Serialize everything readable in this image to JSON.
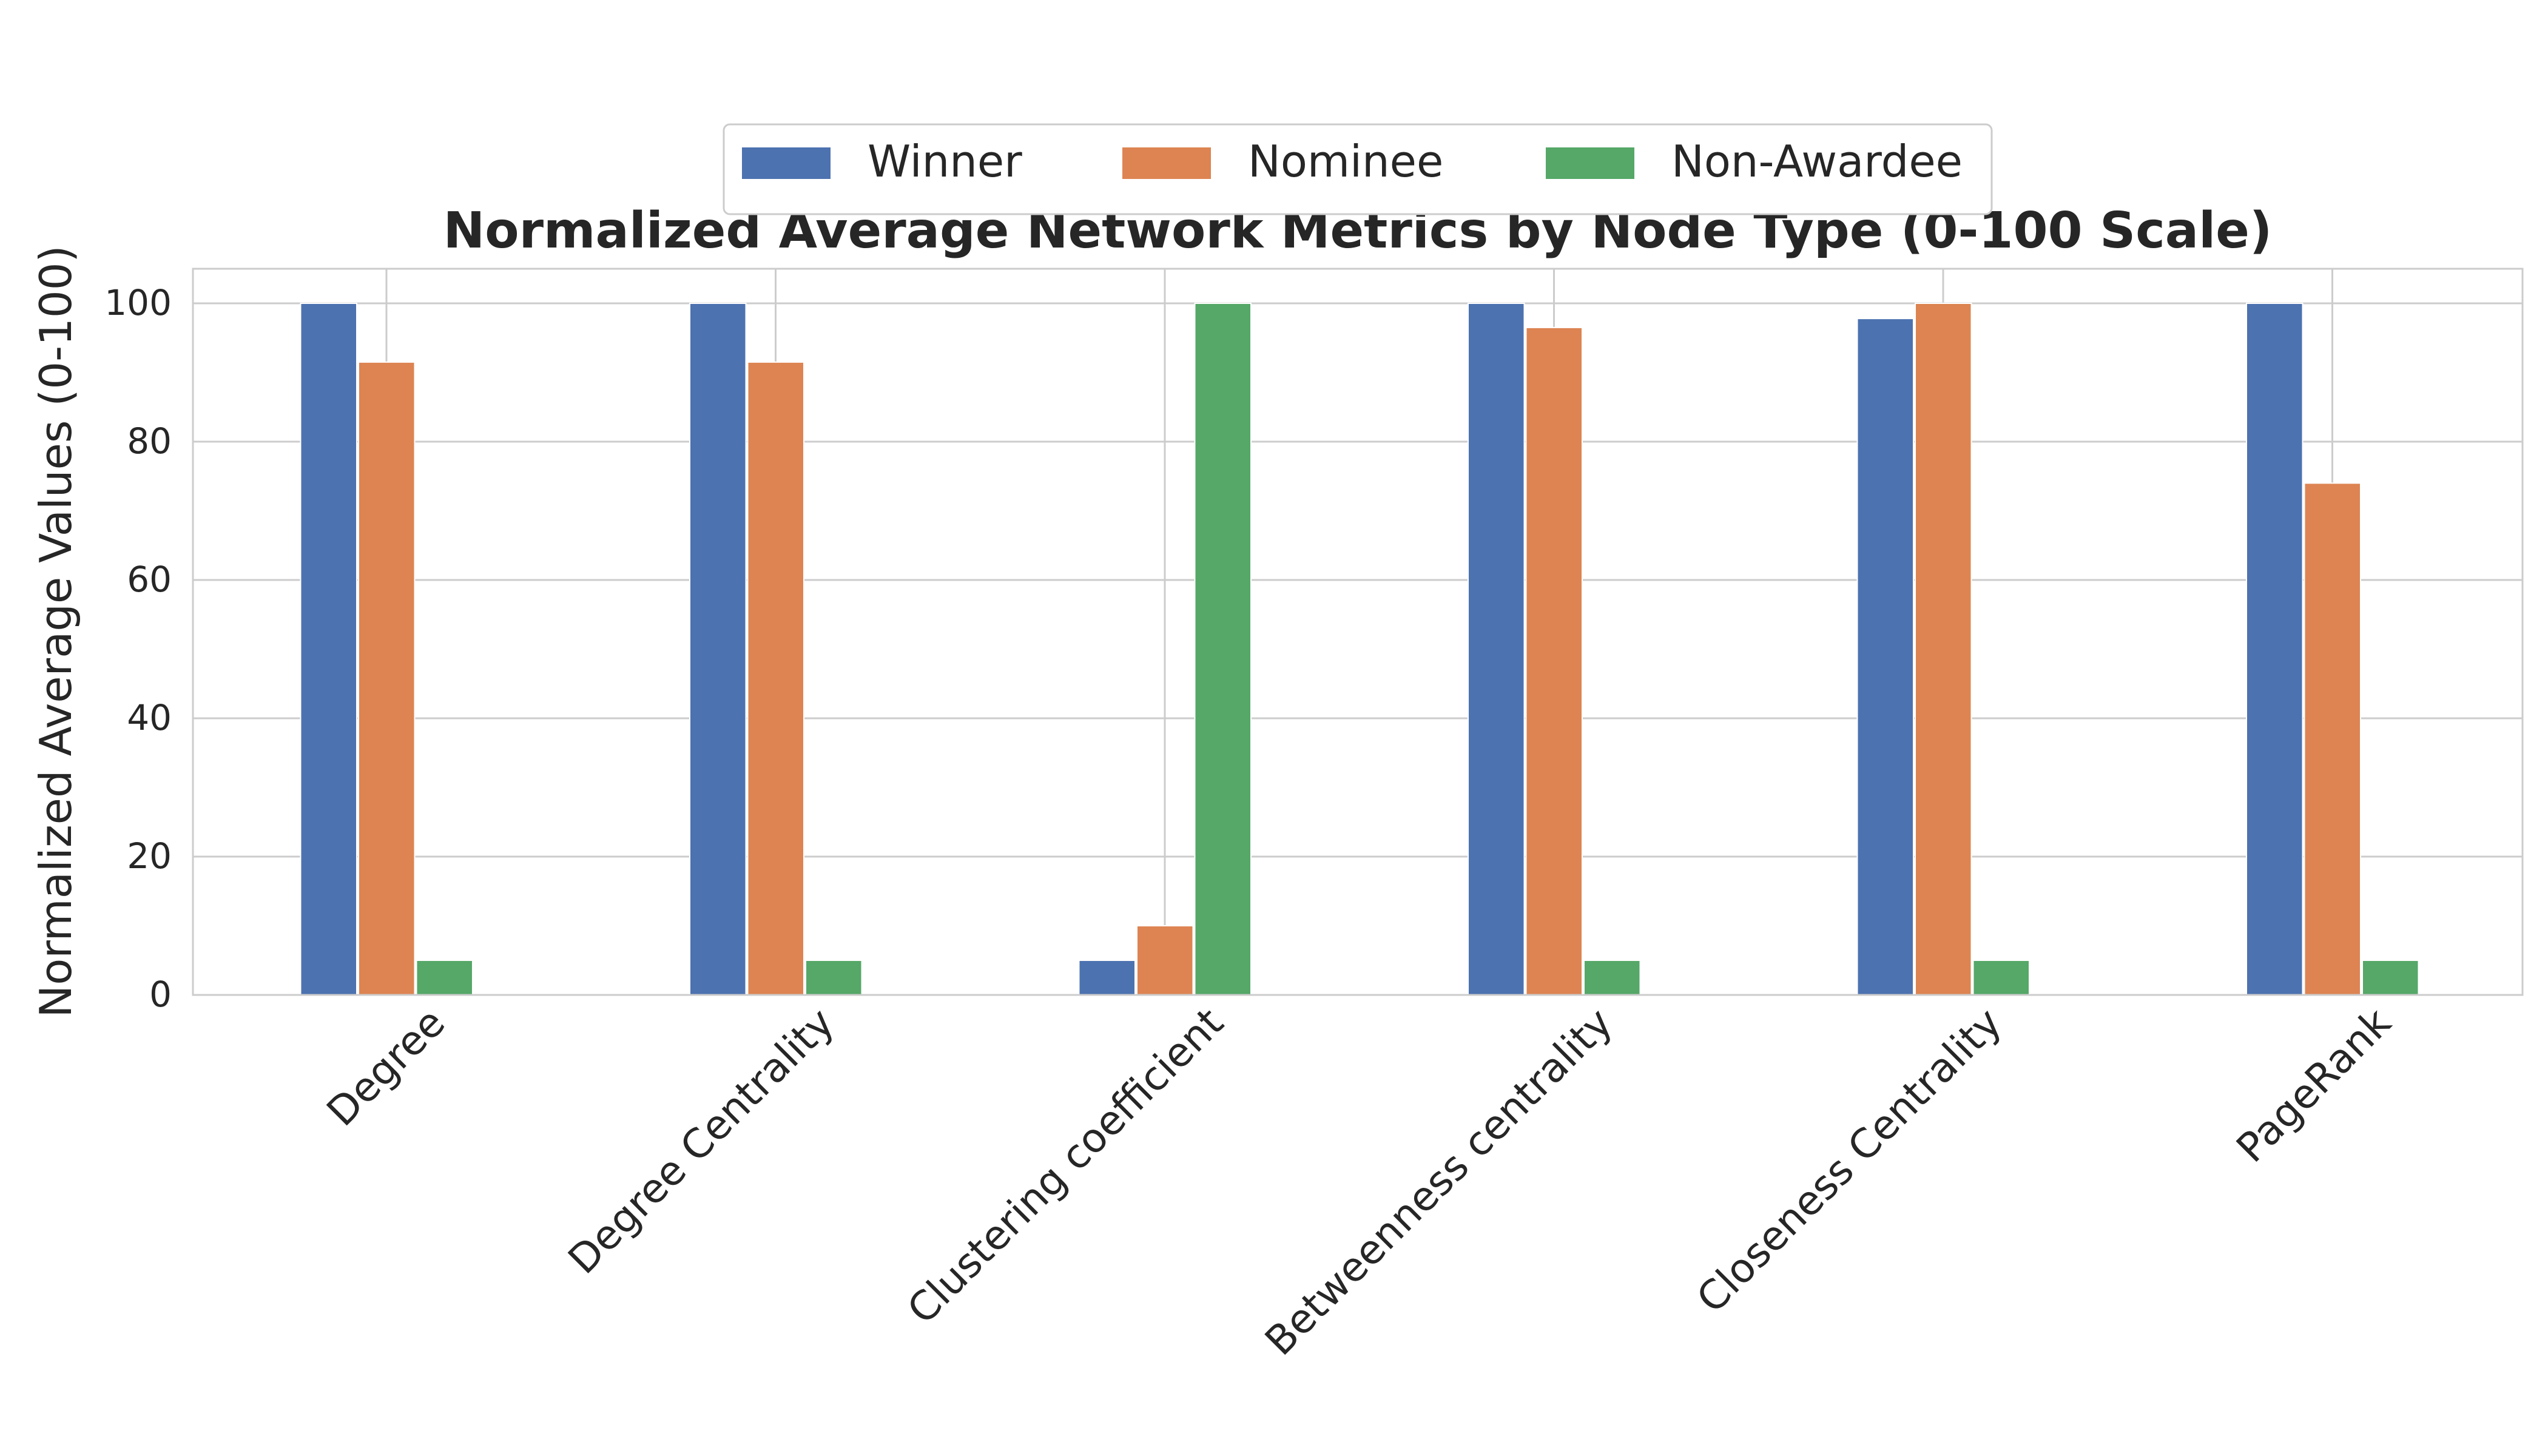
{
  "chart_data": {
    "type": "bar",
    "title": "Normalized Average Network Metrics by Node Type (0-100 Scale)",
    "xlabel": "",
    "ylabel": "Normalized Average Values (0-100)",
    "categories": [
      "Degree",
      "Degree Centrality",
      "Clustering coefficient",
      "Betweenness centrality",
      "Closeness Centrality",
      "PageRank"
    ],
    "series": [
      {
        "name": "Winner",
        "color": "#4c72b0",
        "values": [
          100,
          100,
          5,
          100,
          97.8,
          100
        ]
      },
      {
        "name": "Nominee",
        "color": "#dd8452",
        "values": [
          91.5,
          91.5,
          10,
          96.5,
          100,
          74
        ]
      },
      {
        "name": "Non-Awardee",
        "color": "#55a868",
        "values": [
          5,
          5,
          100,
          5,
          5,
          5
        ]
      }
    ],
    "ylim": [
      0,
      105
    ],
    "yticks": [
      "0",
      "20",
      "40",
      "60",
      "80",
      "100"
    ],
    "grid": true,
    "legend_position": "top-center"
  }
}
